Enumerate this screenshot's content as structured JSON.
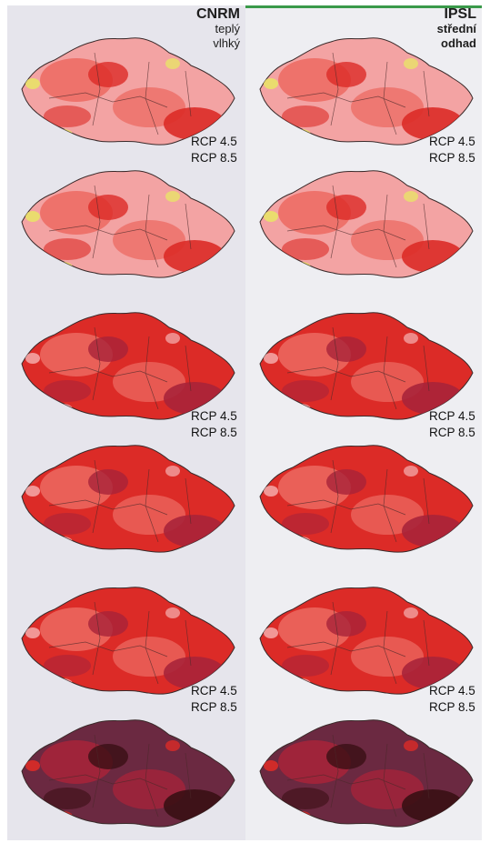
{
  "columns": [
    {
      "model": "CNRM",
      "subtitle_line1": "teplý",
      "subtitle_line2": "vlhký"
    },
    {
      "model": "IPSL",
      "subtitle_line1": "střední",
      "subtitle_line2": "odhad"
    }
  ],
  "scenario_labels": {
    "rcp45": "RCP 4.5",
    "rcp85": "RCP 8.5"
  },
  "legend_colors": {
    "yellow": "#e9e268",
    "pink": "#f3a3a3",
    "light_red": "#ec6a62",
    "red": "#dc2b27",
    "dark_red": "#a8233a",
    "purple": "#6b2941",
    "dark_brown": "#3a0f14"
  },
  "panels": [
    {
      "row": 1,
      "col": 0,
      "scenario": "RCP 4.5",
      "dominant": "light_red"
    },
    {
      "row": 1,
      "col": 1,
      "scenario": "RCP 4.5",
      "dominant": "light_red"
    },
    {
      "row": 2,
      "col": 0,
      "scenario": "RCP 8.5",
      "dominant": "light_red"
    },
    {
      "row": 2,
      "col": 1,
      "scenario": "RCP 8.5",
      "dominant": "light_red"
    },
    {
      "row": 3,
      "col": 0,
      "scenario": "RCP 4.5",
      "dominant": "red"
    },
    {
      "row": 3,
      "col": 1,
      "scenario": "RCP 4.5",
      "dominant": "red"
    },
    {
      "row": 4,
      "col": 0,
      "scenario": "RCP 8.5",
      "dominant": "red"
    },
    {
      "row": 4,
      "col": 1,
      "scenario": "RCP 8.5",
      "dominant": "red"
    },
    {
      "row": 5,
      "col": 0,
      "scenario": "RCP 4.5",
      "dominant": "red"
    },
    {
      "row": 5,
      "col": 1,
      "scenario": "RCP 4.5",
      "dominant": "red"
    },
    {
      "row": 6,
      "col": 0,
      "scenario": "RCP 8.5",
      "dominant": "purple"
    },
    {
      "row": 6,
      "col": 1,
      "scenario": "RCP 8.5",
      "dominant": "purple"
    }
  ]
}
